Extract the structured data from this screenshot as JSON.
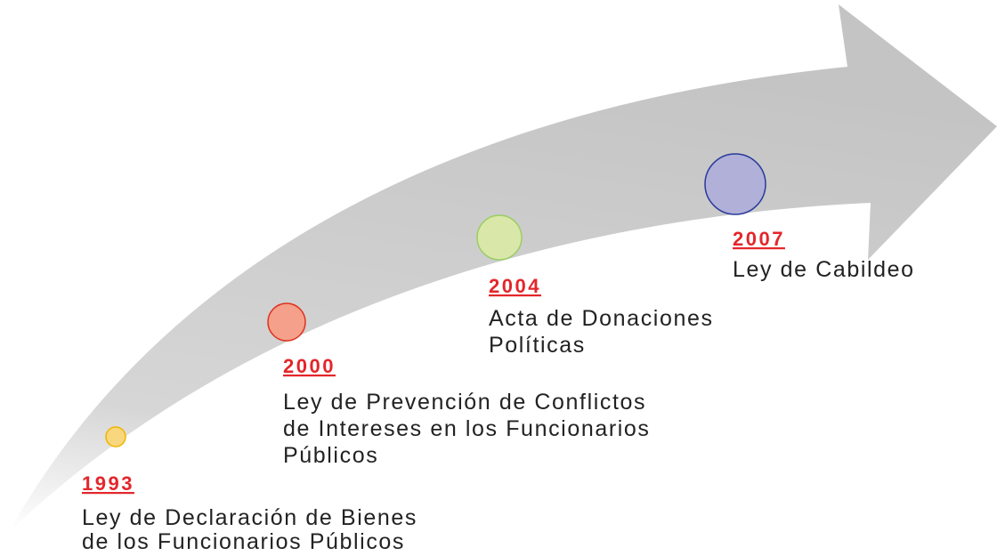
{
  "events": [
    {
      "year": "1993",
      "description": [
        "Ley de Declaración de Bienes",
        "de los Funcionarios Públicos"
      ]
    },
    {
      "year": "2000",
      "description": [
        "Ley de Prevención de Conflictos",
        "de Intereses en los Funcionarios",
        "Públicos"
      ]
    },
    {
      "year": "2004",
      "description": [
        "Acta de Donaciones",
        "Políticas"
      ]
    },
    {
      "year": "2007",
      "description": [
        "Ley de Cabildeo"
      ]
    }
  ]
}
